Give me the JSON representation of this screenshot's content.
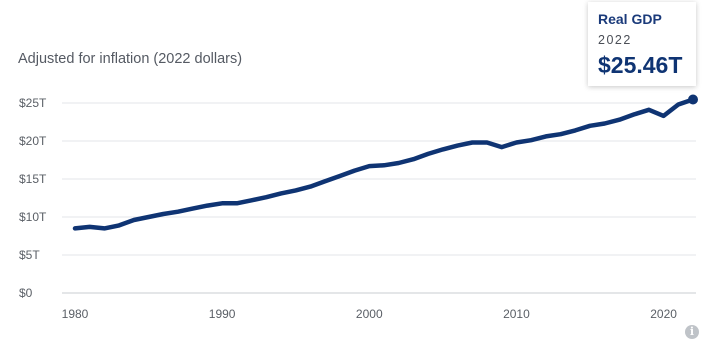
{
  "subtitle": "Adjusted for inflation (2022 dollars)",
  "tooltip": {
    "title": "Real GDP",
    "year": "2022",
    "value": "$25.46T"
  },
  "info_icon": "i",
  "colors": {
    "line": "#0f3473",
    "grid": "#e3e6ea",
    "axis": "#c9cdd2",
    "tick_text": "#5a5f66"
  },
  "chart_data": {
    "type": "line",
    "title": "",
    "xlabel": "",
    "ylabel": "",
    "xlim": [
      1980,
      2022
    ],
    "ylim": [
      0,
      25
    ],
    "yticks": [
      {
        "value": 0,
        "label": "$0"
      },
      {
        "value": 5,
        "label": "$5T"
      },
      {
        "value": 10,
        "label": "$10T"
      },
      {
        "value": 15,
        "label": "$15T"
      },
      {
        "value": 20,
        "label": "$20T"
      },
      {
        "value": 25,
        "label": "$25T"
      }
    ],
    "xticks": [
      {
        "value": 1980,
        "label": "1980"
      },
      {
        "value": 1990,
        "label": "1990"
      },
      {
        "value": 2000,
        "label": "2000"
      },
      {
        "value": 2010,
        "label": "2010"
      },
      {
        "value": 2020,
        "label": "2020"
      }
    ],
    "grid": true,
    "series": [
      {
        "name": "",
        "x": [
          1980,
          1981,
          1982,
          1983,
          1984,
          1985,
          1986,
          1987,
          1988,
          1989,
          1990,
          1991,
          1992,
          1993,
          1994,
          1995,
          1996,
          1997,
          1998,
          1999,
          2000,
          2001,
          2002,
          2003,
          2004,
          2005,
          2006,
          2007,
          2008,
          2009,
          2010,
          2011,
          2012,
          2013,
          2014,
          2015,
          2016,
          2017,
          2018,
          2019,
          2020,
          2021,
          2022
        ],
        "y": [
          8.5,
          8.7,
          8.5,
          8.9,
          9.6,
          10.0,
          10.4,
          10.7,
          11.1,
          11.5,
          11.8,
          11.8,
          12.2,
          12.6,
          13.1,
          13.5,
          14.0,
          14.7,
          15.4,
          16.1,
          16.7,
          16.8,
          17.1,
          17.6,
          18.3,
          18.9,
          19.4,
          19.8,
          19.8,
          19.2,
          19.8,
          20.1,
          20.6,
          20.9,
          21.4,
          22.0,
          22.3,
          22.8,
          23.5,
          24.1,
          23.3,
          24.8,
          25.46
        ]
      }
    ],
    "highlight": {
      "x": 2022,
      "y": 25.46
    }
  }
}
